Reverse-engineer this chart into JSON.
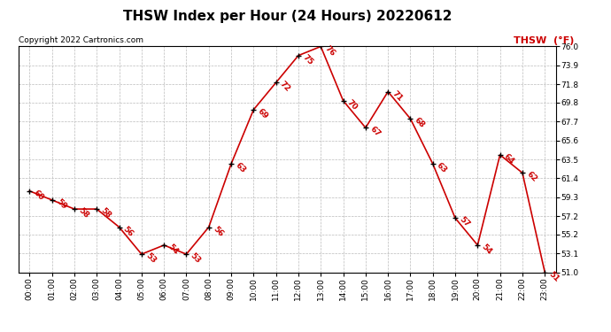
{
  "title": "THSW Index per Hour (24 Hours) 20220612",
  "copyright": "Copyright 2022 Cartronics.com",
  "legend_label": "THSW  (°F)",
  "hours": [
    0,
    1,
    2,
    3,
    4,
    5,
    6,
    7,
    8,
    9,
    10,
    11,
    12,
    13,
    14,
    15,
    16,
    17,
    18,
    19,
    20,
    21,
    22,
    23
  ],
  "values": [
    60,
    59,
    58,
    58,
    56,
    53,
    54,
    53,
    56,
    63,
    69,
    72,
    75,
    76,
    70,
    67,
    71,
    68,
    63,
    57,
    54,
    64,
    62,
    51
  ],
  "x_labels": [
    "00:00",
    "01:00",
    "02:00",
    "03:00",
    "04:00",
    "05:00",
    "06:00",
    "07:00",
    "08:00",
    "09:00",
    "10:00",
    "11:00",
    "12:00",
    "13:00",
    "14:00",
    "15:00",
    "16:00",
    "17:00",
    "18:00",
    "19:00",
    "20:00",
    "21:00",
    "22:00",
    "23:00"
  ],
  "ylim": [
    51.0,
    76.0
  ],
  "y_ticks": [
    51.0,
    53.1,
    55.2,
    57.2,
    59.3,
    61.4,
    63.5,
    65.6,
    67.7,
    69.8,
    71.8,
    73.9,
    76.0
  ],
  "line_color": "#cc0000",
  "marker_color": "#000000",
  "label_color": "#cc0000",
  "title_color": "#000000",
  "copyright_color": "#000000",
  "legend_color": "#cc0000",
  "bg_color": "#ffffff",
  "grid_color": "#bbbbbb",
  "title_fontsize": 11,
  "copyright_fontsize": 6.5,
  "label_fontsize": 6.5,
  "legend_fontsize": 8,
  "axis_fontsize": 6.5
}
